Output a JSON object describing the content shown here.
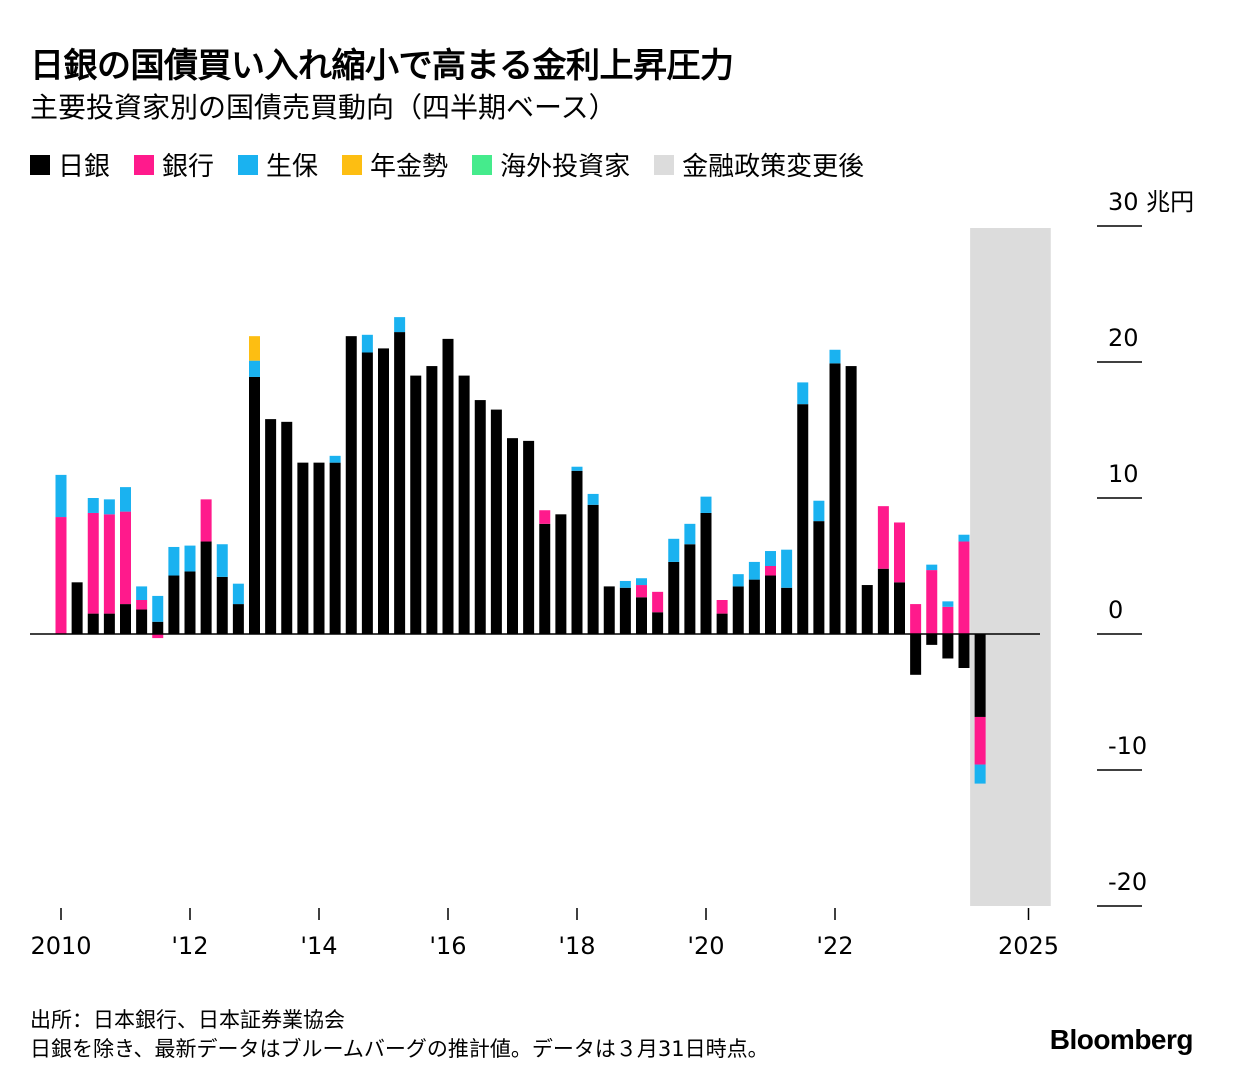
{
  "title": "日銀の国債買い入れ縮小で高まる金利上昇圧力",
  "subtitle": "主要投資家別の国債売買動向（四半期ベース）",
  "legend": [
    {
      "name": "日銀",
      "color": "#000000"
    },
    {
      "name": "銀行",
      "color": "#ff1a8c"
    },
    {
      "name": "生保",
      "color": "#1ab2f0"
    },
    {
      "name": "年金勢",
      "color": "#fdbe12"
    },
    {
      "name": "海外投資家",
      "color": "#45eb8c"
    },
    {
      "name": "金融政策変更後",
      "color": "#dcdcdc"
    }
  ],
  "footer": {
    "source": "出所：日本銀行、日本証券業協会",
    "note": "日銀を除き、最新データはブルームバーグの推計値。データは３月31日時点。"
  },
  "brand": "Bloomberg",
  "chart_data": {
    "type": "bar",
    "stacked": true,
    "unit_label": "30 兆円",
    "ylim": [
      -20,
      30
    ],
    "yticks": [
      -20,
      -10,
      0,
      10,
      20,
      30
    ],
    "ytick_labels": [
      "-20",
      "-10",
      "0",
      "10",
      "20",
      "30 兆円"
    ],
    "x_start": 2010.0,
    "x_step": 0.25,
    "xticks": [
      2010,
      2012,
      2014,
      2016,
      2018,
      2020,
      2022,
      2025
    ],
    "xtick_labels": [
      "2010",
      "'12",
      "'14",
      "'16",
      "'18",
      "'20",
      "'22",
      "2025"
    ],
    "shaded_from": 2024.25,
    "shaded_to": 2025.5,
    "series": [
      {
        "name": "日銀",
        "color": "#000000",
        "values": [
          0.0,
          3.8,
          1.5,
          1.5,
          2.2,
          1.8,
          0.9,
          4.3,
          4.6,
          6.8,
          4.2,
          2.2,
          18.9,
          15.8,
          15.6,
          12.6,
          12.6,
          12.6,
          21.9,
          20.7,
          21.0,
          22.2,
          19.0,
          19.7,
          21.7,
          19.0,
          17.2,
          16.5,
          14.4,
          14.2,
          8.1,
          8.8,
          12.0,
          9.5,
          3.5,
          3.4,
          2.7,
          1.6,
          5.3,
          6.6,
          8.9,
          1.5,
          3.5,
          4.0,
          4.3,
          3.4,
          16.9,
          8.3,
          19.9,
          19.7,
          3.6,
          4.8,
          3.8,
          -3.0,
          -0.8,
          -1.8,
          -2.5,
          -6.1
        ]
      },
      {
        "name": "銀行",
        "color": "#ff1a8c",
        "values": [
          8.6,
          0,
          7.4,
          7.3,
          6.8,
          0.7,
          -0.3,
          0,
          0,
          3.1,
          0,
          0,
          0,
          0,
          0,
          0,
          0,
          0,
          0,
          0,
          0,
          0,
          0,
          0,
          0,
          0,
          0,
          0,
          0,
          0,
          1.0,
          0,
          0,
          0,
          0,
          0,
          0.9,
          1.5,
          0,
          0,
          0,
          1.0,
          0,
          0,
          0.7,
          0,
          0,
          0,
          0,
          0,
          0,
          4.6,
          4.4,
          2.2,
          4.7,
          2.0,
          6.8,
          -3.5
        ]
      },
      {
        "name": "生保",
        "color": "#1ab2f0",
        "values": [
          3.1,
          0,
          1.1,
          1.1,
          1.8,
          1.0,
          1.9,
          2.1,
          1.9,
          0,
          2.4,
          1.5,
          1.2,
          0,
          0,
          0,
          0,
          0.5,
          0,
          1.3,
          0,
          1.1,
          0,
          0,
          0,
          0,
          0,
          0,
          0,
          0,
          0,
          0,
          0.3,
          0.8,
          0,
          0.5,
          0.5,
          0,
          1.7,
          1.5,
          1.2,
          0,
          0.9,
          1.3,
          1.1,
          2.8,
          1.6,
          1.5,
          1.0,
          0,
          0,
          0,
          0,
          0,
          0.4,
          0.4,
          0.5,
          -1.4
        ]
      },
      {
        "name": "年金勢",
        "color": "#fdbe12",
        "values": [
          0,
          0,
          0,
          0,
          0,
          0,
          0,
          0,
          0,
          0,
          0,
          0,
          1.8,
          0,
          0,
          0,
          0,
          0,
          0,
          0,
          0,
          0,
          0,
          0,
          0,
          0,
          0,
          0,
          0,
          0,
          0,
          0,
          0,
          0,
          0,
          0,
          0,
          0,
          0,
          0,
          0,
          0,
          0,
          0,
          0,
          0,
          0,
          0,
          0,
          0,
          0,
          0,
          0,
          0,
          0,
          0,
          0,
          0
        ]
      },
      {
        "name": "海外投資家",
        "color": "#45eb8c",
        "values": [
          0,
          0,
          0,
          0,
          0,
          0,
          0,
          0,
          0,
          0,
          0,
          0,
          0,
          0,
          0,
          0,
          0,
          0,
          0,
          0,
          0,
          0,
          0,
          0,
          0,
          0,
          0,
          0,
          0,
          0,
          0,
          0,
          0,
          0,
          0,
          0,
          0,
          0,
          0,
          0,
          0,
          0,
          0,
          0,
          0,
          0,
          0,
          0,
          0,
          0,
          0,
          0,
          0,
          0,
          0,
          0,
          0,
          0
        ]
      }
    ]
  }
}
